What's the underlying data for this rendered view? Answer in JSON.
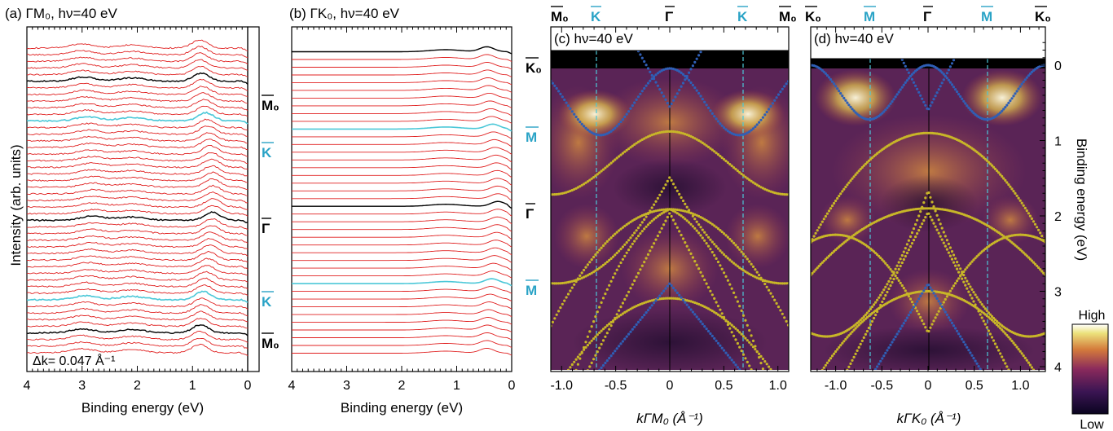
{
  "colors": {
    "edc_line": "#e02020",
    "edc_black": "#000000",
    "edc_cyan": "#4cc8d8",
    "hs_label_cyan": "#2aa3c6",
    "band_blue": "#2f5fb6",
    "band_yellow": "#c8b628",
    "marker_dashed": "#4cc8d8"
  },
  "panel_a": {
    "label": "(a) ΓM₀, hν=40 eV",
    "annotation": "Δk= 0.047 Å⁻¹",
    "y_axis_label": "Intensity (arb. units)",
    "x_axis_label": "Binding energy (eV)",
    "x_ticks": [
      "4",
      "3",
      "2",
      "1",
      "0"
    ],
    "hs_labels": [
      "M₀",
      "K",
      "Γ",
      "K",
      "M₀"
    ]
  },
  "panel_b": {
    "label": "(b) ΓK₀, hν=40 eV",
    "x_axis_label": "Binding energy (eV)",
    "x_ticks": [
      "4",
      "3",
      "2",
      "1",
      "0"
    ],
    "hs_labels": [
      "K₀",
      "M",
      "Γ",
      "M"
    ]
  },
  "panel_c": {
    "label": "(c) hν=40 eV",
    "top_labels": [
      "M₀",
      "K",
      "Γ",
      "K",
      "M₀"
    ],
    "x_axis_label": "kΓM₀ (Å⁻¹)",
    "x_ticks": [
      "-1.0",
      "-0.5",
      "0",
      "0.5",
      "1.0"
    ]
  },
  "panel_d": {
    "label": "(d) hν=40 eV",
    "top_labels": [
      "K₀",
      "M",
      "Γ",
      "M",
      "K₀"
    ],
    "x_axis_label": "kΓK₀ (Å⁻¹)",
    "x_ticks": [
      "-1.0",
      "-0.5",
      "0",
      "0.5",
      "1.0"
    ],
    "y_axis_label": "Binding energy (eV)",
    "y_ticks": [
      "0",
      "1",
      "2",
      "3",
      "4"
    ]
  },
  "colorbar": {
    "high_label": "High",
    "low_label": "Low"
  },
  "chart_data": [
    {
      "type": "line",
      "title": "(a) ΓM₀, hν=40 eV",
      "xlabel": "Binding energy (eV)",
      "ylabel": "Intensity (arb. units)",
      "xlim": [
        4,
        0
      ],
      "stack_count": 47,
      "highlighted_curves": {
        "black": [
          "M₀",
          "Γ",
          "M₀"
        ],
        "cyan": [
          "K",
          "K"
        ]
      },
      "annotation": "Δk= 0.047 Å⁻¹"
    },
    {
      "type": "line",
      "title": "(b) ΓK₀, hν=40 eV",
      "xlabel": "Binding energy (eV)",
      "xlim": [
        4,
        0
      ],
      "stack_count": 40,
      "highlighted_curves": {
        "black": [
          "K₀",
          "Γ"
        ],
        "cyan": [
          "M",
          "M"
        ]
      }
    },
    {
      "type": "heatmap",
      "title": "(c) hν=40 eV",
      "xlabel": "kΓM₀ (Å⁻¹)",
      "ylabel": "Binding energy (eV)",
      "xlim": [
        -1.1,
        1.1
      ],
      "ylim": [
        4,
        -0.3
      ],
      "high_symmetry_k": {
        "M₀": -1.1,
        "K": -0.73,
        "Γ": 0,
        "K ": 0.73,
        "M₀ ": 1.1
      }
    },
    {
      "type": "heatmap",
      "title": "(d) hν=40 eV",
      "xlabel": "kΓK₀ (Å⁻¹)",
      "ylabel": "Binding energy (eV)",
      "xlim": [
        -1.27,
        1.27
      ],
      "ylim": [
        4,
        -0.3
      ],
      "high_symmetry_k": {
        "K₀": -1.27,
        "M": -0.63,
        "Γ": 0,
        "M ": 0.63,
        "K₀ ": 1.27
      },
      "colorbar": [
        "Low",
        "High"
      ]
    }
  ]
}
